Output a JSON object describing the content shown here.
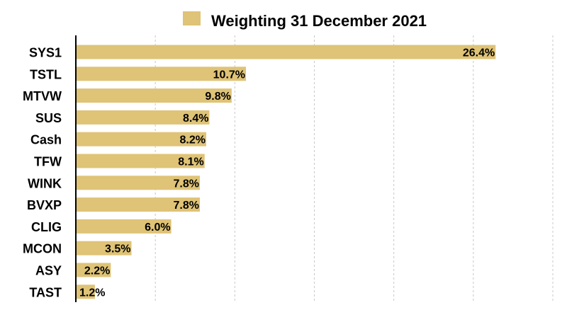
{
  "chart_data": {
    "type": "bar",
    "orientation": "horizontal",
    "legend": {
      "position": "top",
      "entries": [
        {
          "label": "Weighting 31 December 2021",
          "color": "#dfc376"
        }
      ]
    },
    "categories": [
      "SYS1",
      "TSTL",
      "MTVW",
      "SUS",
      "Cash",
      "TFW",
      "WINK",
      "BVXP",
      "CLIG",
      "MCON",
      "ASY",
      "TAST"
    ],
    "values": [
      26.4,
      10.7,
      9.8,
      8.4,
      8.2,
      8.1,
      7.8,
      7.8,
      6.0,
      3.5,
      2.2,
      1.2
    ],
    "data_labels": [
      "26.4%",
      "10.7%",
      "9.8%",
      "8.4%",
      "8.2%",
      "8.1%",
      "7.8%",
      "7.8%",
      "6.0%",
      "3.5%",
      "2.2%",
      "1.2%"
    ],
    "xlim": [
      0,
      30
    ],
    "grid": {
      "vertical": true,
      "horizontal": false,
      "style": "dashed",
      "color": "#c8c8c8"
    },
    "bar_color": "#dfc376",
    "axis_color": "#000000",
    "label_color": "#000000"
  }
}
